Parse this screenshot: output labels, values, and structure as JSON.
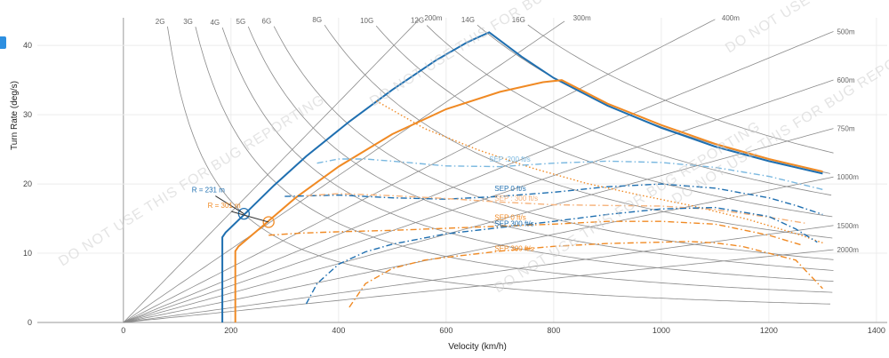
{
  "watermark": "DO NOT USE THIS FOR BUG REPORTING",
  "side_tab_icon": "panel-toggle-icon",
  "chart_data": {
    "type": "line",
    "xlabel": "Velocity (km/h)",
    "ylabel": "Turn Rate (deg/s)",
    "xlim": [
      -160,
      1420
    ],
    "ylim": [
      0,
      44
    ],
    "x_ticks": [
      "0",
      "200",
      "400",
      "600",
      "800",
      "1000",
      "1200",
      "1400"
    ],
    "x_tick_values": [
      0,
      200,
      400,
      600,
      800,
      1000,
      1200,
      1400
    ],
    "y_ticks": [
      "0",
      "10",
      "20",
      "30",
      "40"
    ],
    "y_tick_values": [
      0,
      10,
      20,
      30,
      40
    ],
    "grid": true,
    "g_lines": [
      {
        "label": "2G",
        "g": 2
      },
      {
        "label": "3G",
        "g": 3
      },
      {
        "label": "4G",
        "g": 4
      },
      {
        "label": "5G",
        "g": 5
      },
      {
        "label": "6G",
        "g": 6
      },
      {
        "label": "8G",
        "g": 8
      },
      {
        "label": "10G",
        "g": 10
      },
      {
        "label": "12G",
        "g": 12
      },
      {
        "label": "14G",
        "g": 14
      },
      {
        "label": "16G",
        "g": 16
      }
    ],
    "radius_lines": [
      {
        "label": "200m",
        "r": 200
      },
      {
        "label": "300m",
        "r": 300
      },
      {
        "label": "400m",
        "r": 400
      },
      {
        "label": "500m",
        "r": 500
      },
      {
        "label": "600m",
        "r": 600
      },
      {
        "label": "750m",
        "r": 750
      },
      {
        "label": "1000m",
        "r": 1000
      },
      {
        "label": "1500m",
        "r": 1500
      },
      {
        "label": "2000m",
        "r": 2000
      }
    ],
    "series": [
      {
        "color": "#1f6fb0",
        "style": "envelope",
        "x": [
          184,
          184,
          190,
          230,
          280,
          340,
          420,
          500,
          580,
          640,
          680,
          740,
          800,
          900,
          1000,
          1100,
          1200,
          1300
        ],
        "y": [
          0,
          12.3,
          13.0,
          16.0,
          19.8,
          24.0,
          29.0,
          33.6,
          37.8,
          40.5,
          41.9,
          38.4,
          35.3,
          31.3,
          28.1,
          25.4,
          23.3,
          21.5
        ]
      },
      {
        "color": "#f08a24",
        "style": "envelope",
        "x": [
          208,
          208,
          214,
          260,
          320,
          400,
          500,
          600,
          700,
          780,
          815,
          900,
          1000,
          1100,
          1200,
          1300
        ],
        "y": [
          0,
          10.3,
          11.0,
          14.0,
          18.0,
          22.5,
          27.2,
          30.8,
          33.3,
          34.7,
          35.0,
          31.6,
          28.5,
          25.8,
          23.6,
          21.8
        ]
      },
      {
        "color": "#f08a24",
        "style": "dotted",
        "x": [
          470,
          560,
          660,
          760,
          860,
          960,
          1060,
          1160,
          1260,
          1300
        ],
        "y": [
          32,
          28.0,
          24.9,
          22.3,
          20.1,
          18.4,
          16.8,
          14.9,
          12.6,
          11.5
        ]
      },
      {
        "color": "#7ab8e0",
        "style": "dashdot",
        "x": [
          360,
          400,
          450,
          500,
          600,
          700,
          800,
          900,
          1000,
          1100,
          1200,
          1300
        ],
        "y": [
          23.0,
          23.6,
          23.6,
          23.3,
          22.6,
          22.5,
          23.0,
          23.3,
          23.1,
          22.4,
          21.1,
          19.2
        ]
      },
      {
        "color": "#1f6fb0",
        "style": "dashdot",
        "x": [
          300,
          400,
          500,
          600,
          700,
          800,
          900,
          1000,
          1100,
          1200,
          1250,
          1300
        ],
        "y": [
          18.2,
          18.4,
          18.0,
          17.8,
          18.2,
          18.8,
          19.6,
          20.0,
          19.4,
          18.0,
          16.9,
          15.6
        ]
      },
      {
        "color": "#f6b27a",
        "style": "dashdot",
        "x": [
          340,
          400,
          500,
          600,
          700,
          800,
          900,
          1000,
          1100,
          1200,
          1270
        ],
        "y": [
          18.3,
          18.6,
          18.3,
          17.9,
          17.4,
          17.0,
          16.9,
          16.8,
          16.3,
          15.2,
          14.3
        ]
      },
      {
        "color": "#1f6fb0",
        "style": "dashdot",
        "x": [
          340,
          360,
          400,
          450,
          500,
          600,
          700,
          800,
          900,
          1000,
          1100,
          1200,
          1250,
          1290
        ],
        "y": [
          2.7,
          5.6,
          8.4,
          10.2,
          11.3,
          12.8,
          13.7,
          14.6,
          15.6,
          16.4,
          16.6,
          15.3,
          13.5,
          11.6
        ]
      },
      {
        "color": "#f08a24",
        "style": "dashdot",
        "x": [
          270,
          330,
          400,
          500,
          600,
          700,
          800,
          900,
          1000,
          1100,
          1200,
          1260
        ],
        "y": [
          12.6,
          12.9,
          13.1,
          13.3,
          13.6,
          13.9,
          14.2,
          14.6,
          14.6,
          14.2,
          12.6,
          11.2
        ]
      },
      {
        "color": "#f08a24",
        "style": "dashdot",
        "x": [
          420,
          450,
          500,
          560,
          600,
          700,
          800,
          900,
          1000,
          1050,
          1100,
          1150,
          1200,
          1250,
          1300
        ],
        "y": [
          2.2,
          5.6,
          7.8,
          9.0,
          9.4,
          10.3,
          11.0,
          11.4,
          11.6,
          11.7,
          11.5,
          11.0,
          10.0,
          9.0,
          4.9
        ]
      }
    ],
    "annotations": [
      {
        "text": "SEP :200 ft/s",
        "x": 680,
        "y": 23.2,
        "color": "#7ab8e0"
      },
      {
        "text": "SEP 0 ft/s",
        "x": 690,
        "y": 19.0,
        "color": "#1f6fb0"
      },
      {
        "text": "SEP : 300 ft/s",
        "x": 690,
        "y": 17.6,
        "color": "#f6b27a"
      },
      {
        "text": "SEP 0 ft/s",
        "x": 690,
        "y": 14.8,
        "color": "#f08a24"
      },
      {
        "text": "SEP 300 ft/s",
        "x": 690,
        "y": 13.9,
        "color": "#1f6fb0"
      },
      {
        "text": "SEP 300 ft/s",
        "x": 690,
        "y": 10.3,
        "color": "#f08a24"
      }
    ],
    "markers": [
      {
        "label": "R = 231 m",
        "x": 224,
        "y": 15.7,
        "color": "#1f6fb0"
      },
      {
        "label": "R = 301 m",
        "x": 270,
        "y": 14.5,
        "color": "#f08a24"
      }
    ]
  }
}
